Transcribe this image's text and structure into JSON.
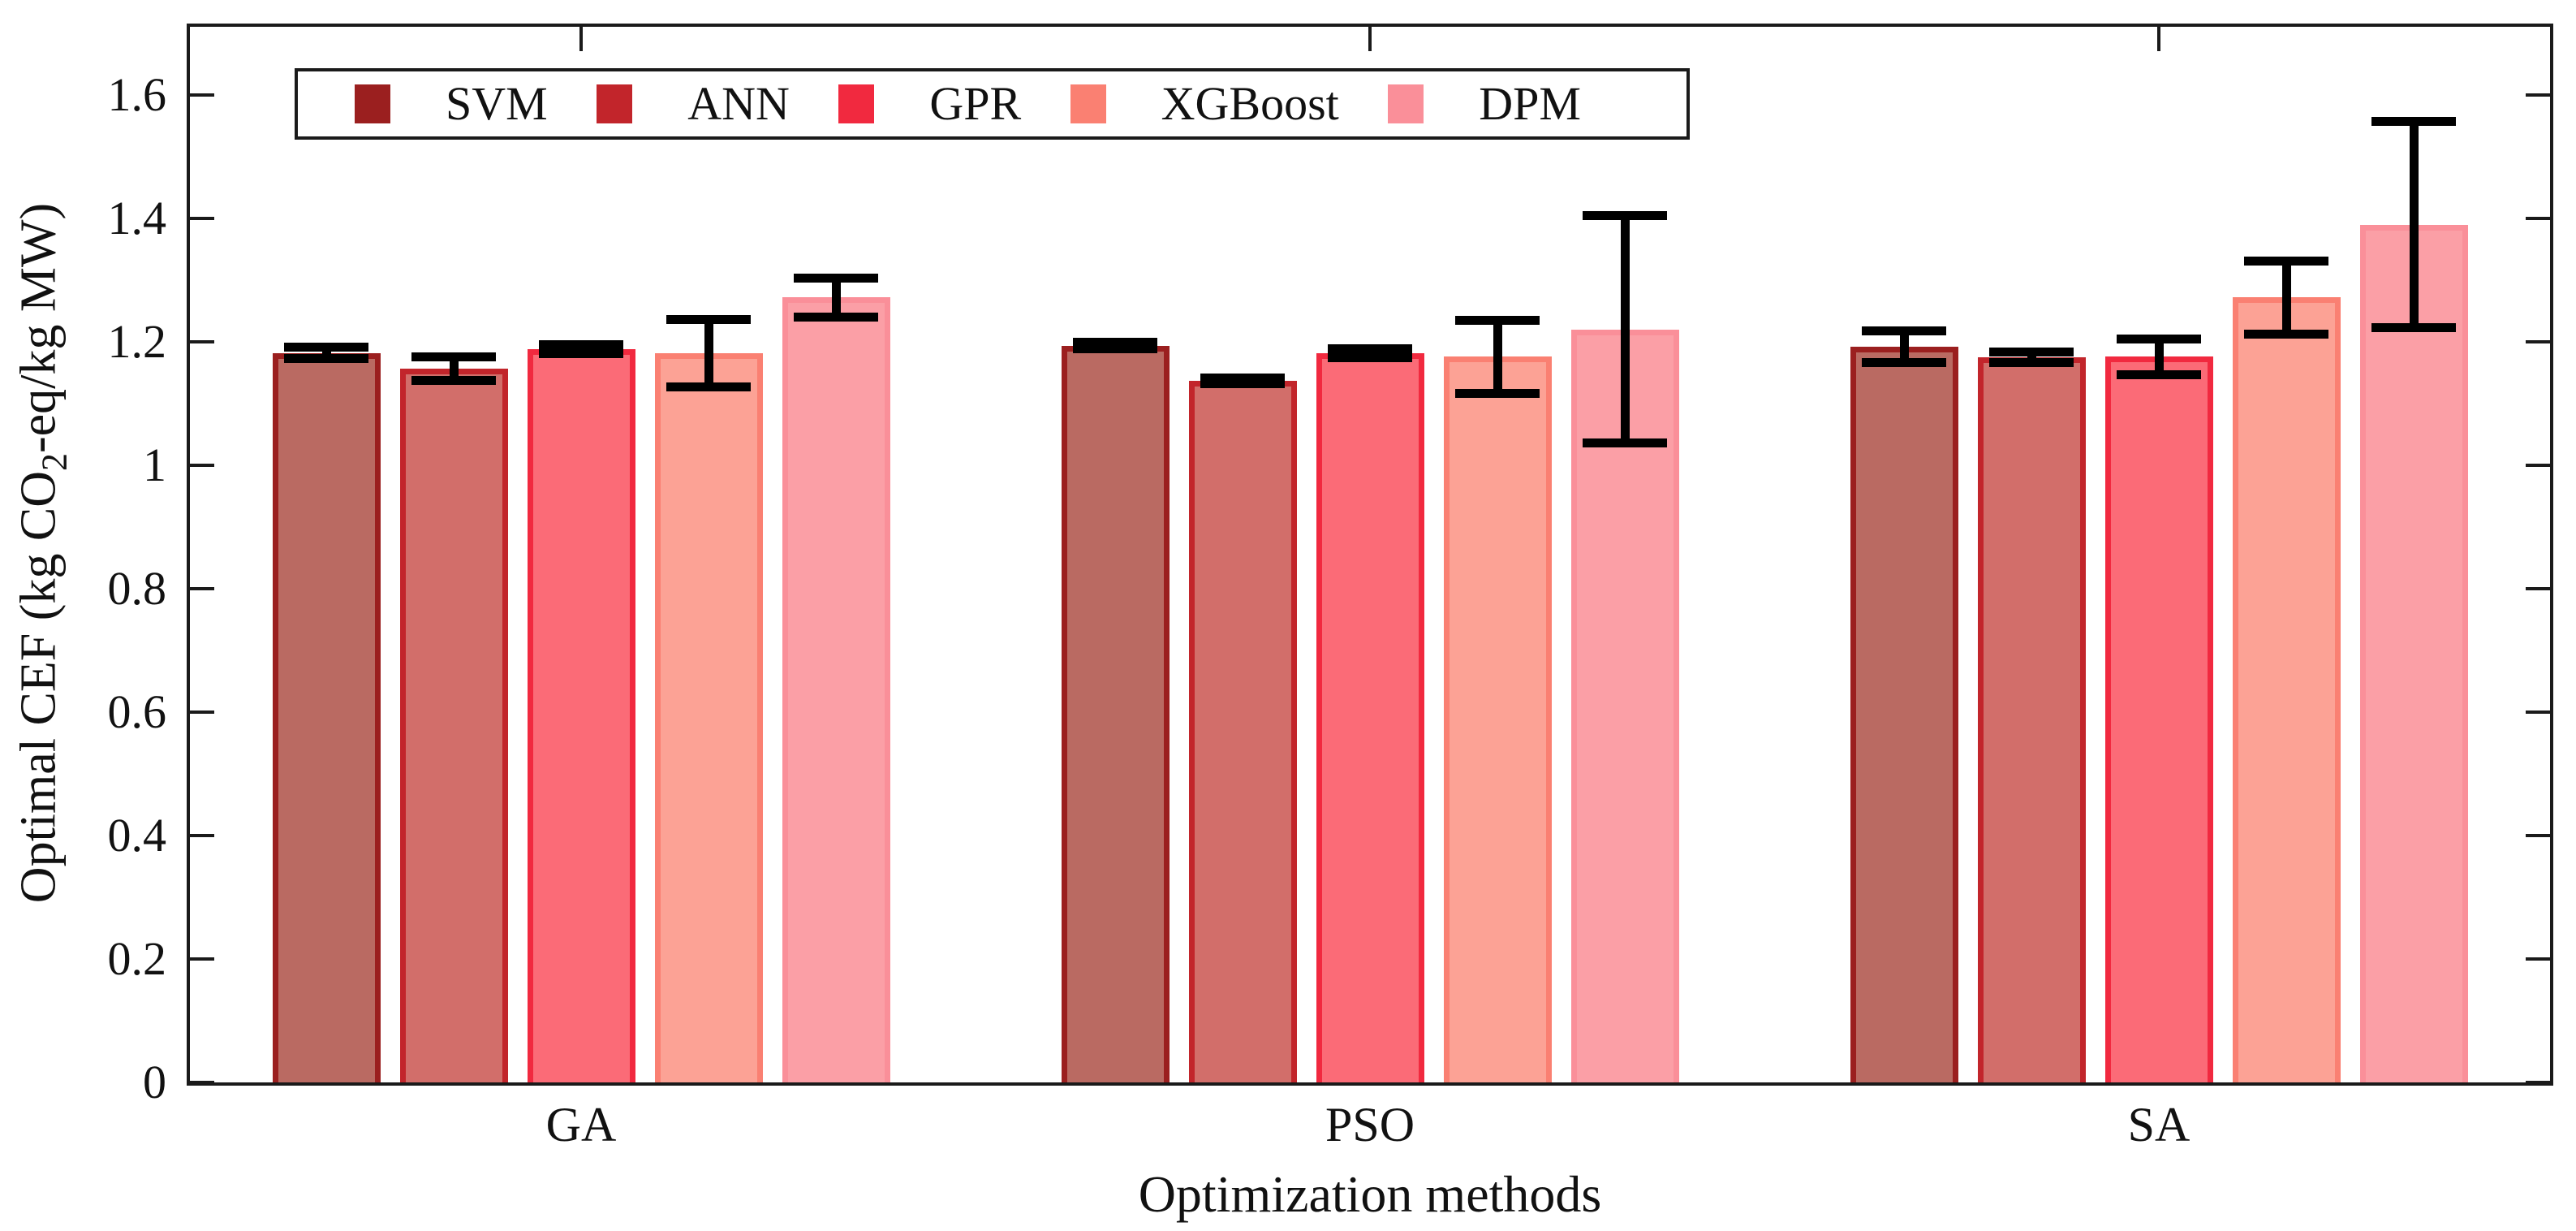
{
  "chart_data": {
    "type": "bar",
    "title": "",
    "xlabel": "Optimization methods",
    "ylabel": {
      "prefix": "Optimal CEF (kg CO",
      "sub": "2",
      "suffix": "-eq/kg MW)"
    },
    "categories": [
      "GA",
      "PSO",
      "SA"
    ],
    "yticks": [
      0,
      0.2,
      0.4,
      0.6,
      0.8,
      1,
      1.2,
      1.4,
      1.6
    ],
    "ytick_labels": [
      "0",
      "0.2",
      "0.4",
      "0.6",
      "0.8",
      "1",
      "1.2",
      "1.4",
      "1.6"
    ],
    "ylim": [
      0,
      1.716
    ],
    "grid": false,
    "legend_position": "inside-top-left",
    "axis_color": "#1a1a1a",
    "errorbar_color": "#000000",
    "series": [
      {
        "name": "SVM",
        "edge": "#9b1f1f",
        "fill": "#ba6a62",
        "values": [
          1.182,
          1.194,
          1.192
        ],
        "errors": [
          0.01,
          0.006,
          0.026
        ]
      },
      {
        "name": "ANN",
        "edge": "#c2252b",
        "fill": "#d26e6a",
        "values": [
          1.157,
          1.137,
          1.175
        ],
        "errors": [
          0.02,
          0.005,
          0.009
        ]
      },
      {
        "name": "GPR",
        "edge": "#f1293f",
        "fill": "#fb6b77",
        "values": [
          1.188,
          1.182,
          1.176
        ],
        "errors": [
          0.008,
          0.008,
          0.03
        ]
      },
      {
        "name": "XGBoost",
        "edge": "#fa8072",
        "fill": "#fca295",
        "values": [
          1.182,
          1.176,
          1.272
        ],
        "errors": [
          0.055,
          0.06,
          0.06
        ]
      },
      {
        "name": "DPM",
        "edge": "#fa8f99",
        "fill": "#fb9fa6",
        "values": [
          1.272,
          1.22,
          1.39
        ],
        "errors": [
          0.032,
          0.185,
          0.168
        ]
      }
    ]
  }
}
